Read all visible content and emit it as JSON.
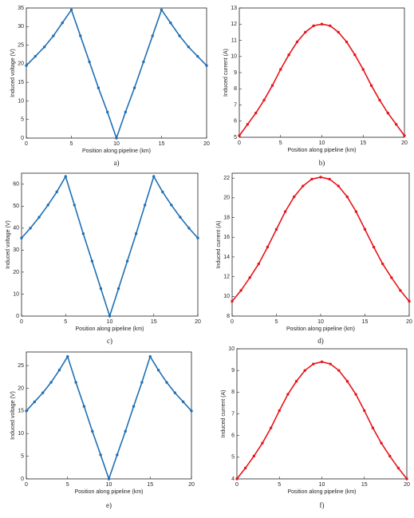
{
  "chart_data": [
    {
      "type": "line",
      "caption": "a)",
      "xlabel": "Position along pipeline (km)",
      "ylabel": "Induced voltage (V)",
      "color": "#1f6fb4",
      "x": [
        0,
        1,
        2,
        3,
        4,
        5,
        6,
        7,
        8,
        9,
        10,
        11,
        12,
        13,
        14,
        15,
        16,
        17,
        18,
        19,
        20
      ],
      "values": [
        19.5,
        22,
        24.5,
        27.5,
        31,
        34.5,
        27.5,
        20.5,
        13.5,
        7,
        0,
        7,
        13.5,
        20.5,
        27.5,
        34.5,
        31,
        27.5,
        24.5,
        22,
        19.5
      ],
      "xlim": [
        0,
        20
      ],
      "xticks": [
        0,
        5,
        10,
        15,
        20
      ],
      "ylim": [
        0,
        35
      ],
      "yticks": [
        0,
        5,
        10,
        15,
        20,
        25,
        30,
        35
      ]
    },
    {
      "type": "line",
      "caption": "b)",
      "xlabel": "Position along pipeline (km)",
      "ylabel": "Induced current (A)",
      "color": "#e8141a",
      "x": [
        0,
        1,
        2,
        3,
        4,
        5,
        6,
        7,
        8,
        9,
        10,
        11,
        12,
        13,
        14,
        15,
        16,
        17,
        18,
        19,
        20
      ],
      "values": [
        5.1,
        5.8,
        6.5,
        7.3,
        8.2,
        9.2,
        10.1,
        10.9,
        11.5,
        11.9,
        12,
        11.9,
        11.5,
        10.9,
        10.1,
        9.2,
        8.2,
        7.3,
        6.5,
        5.8,
        5.1
      ],
      "xlim": [
        0,
        20
      ],
      "xticks": [
        0,
        5,
        10,
        15,
        20
      ],
      "ylim": [
        5,
        13
      ],
      "yticks": [
        5,
        6,
        7,
        8,
        9,
        10,
        11,
        12,
        13
      ]
    },
    {
      "type": "line",
      "caption": "c)",
      "xlabel": "Position along pipeline (km)",
      "ylabel": "Induced voltage (V)",
      "color": "#1f6fb4",
      "x": [
        0,
        1,
        2,
        3,
        4,
        5,
        6,
        7,
        8,
        9,
        10,
        11,
        12,
        13,
        14,
        15,
        16,
        17,
        18,
        19,
        20
      ],
      "values": [
        35.5,
        40,
        45,
        50.5,
        56.5,
        63.5,
        50.5,
        37.5,
        25,
        12.5,
        0,
        12.5,
        25,
        37.5,
        50.5,
        63.5,
        56.5,
        50.5,
        45,
        40,
        35.5
      ],
      "xlim": [
        0,
        20
      ],
      "xticks": [
        0,
        5,
        10,
        15,
        20
      ],
      "ylim": [
        0,
        65
      ],
      "yticks": [
        0,
        10,
        20,
        30,
        40,
        50,
        60
      ]
    },
    {
      "type": "line",
      "caption": "d)",
      "xlabel": "Position along pipeline (km)",
      "ylabel": "Induced current (A)",
      "color": "#e8141a",
      "x": [
        0,
        1,
        2,
        3,
        4,
        5,
        6,
        7,
        8,
        9,
        10,
        11,
        12,
        13,
        14,
        15,
        16,
        17,
        18,
        19,
        20
      ],
      "values": [
        9.5,
        10.6,
        11.9,
        13.3,
        15,
        16.8,
        18.6,
        20.1,
        21.2,
        21.9,
        22.1,
        21.9,
        21.2,
        20.1,
        18.6,
        16.8,
        15,
        13.3,
        11.9,
        10.6,
        9.5
      ],
      "xlim": [
        0,
        20
      ],
      "xticks": [
        0,
        5,
        10,
        15,
        20
      ],
      "ylim": [
        8,
        22.5
      ],
      "yticks": [
        8,
        10,
        12,
        14,
        16,
        18,
        20,
        22
      ]
    },
    {
      "type": "line",
      "caption": "e)",
      "xlabel": "Position along pipeline (km)",
      "ylabel": "Induced voltage (V)",
      "color": "#1f6fb4",
      "x": [
        0,
        1,
        2,
        3,
        4,
        5,
        6,
        7,
        8,
        9,
        10,
        11,
        12,
        13,
        14,
        15,
        16,
        17,
        18,
        19,
        20
      ],
      "values": [
        15,
        17,
        19,
        21.3,
        24,
        27,
        21.3,
        16,
        10.5,
        5.3,
        0,
        5.3,
        10.5,
        16,
        21.3,
        27,
        24,
        21.3,
        19,
        17,
        15
      ],
      "xlim": [
        0,
        20
      ],
      "xticks": [
        0,
        5,
        10,
        15,
        20
      ],
      "ylim": [
        0,
        28
      ],
      "yticks": [
        0,
        5,
        10,
        15,
        20,
        25
      ]
    },
    {
      "type": "line",
      "caption": "f)",
      "xlabel": "Position along pipeline (km)",
      "ylabel": "Induced current (A)",
      "color": "#e8141a",
      "x": [
        0,
        1,
        2,
        3,
        4,
        5,
        6,
        7,
        8,
        9,
        10,
        11,
        12,
        13,
        14,
        15,
        16,
        17,
        18,
        19,
        20
      ],
      "values": [
        4,
        4.5,
        5.05,
        5.65,
        6.35,
        7.15,
        7.9,
        8.5,
        9,
        9.3,
        9.4,
        9.3,
        9,
        8.5,
        7.9,
        7.15,
        6.35,
        5.65,
        5.05,
        4.5,
        4
      ],
      "xlim": [
        0,
        20
      ],
      "xticks": [
        0,
        5,
        10,
        15,
        20
      ],
      "ylim": [
        4,
        10
      ],
      "yticks": [
        4,
        5,
        6,
        7,
        8,
        9,
        10
      ]
    }
  ]
}
